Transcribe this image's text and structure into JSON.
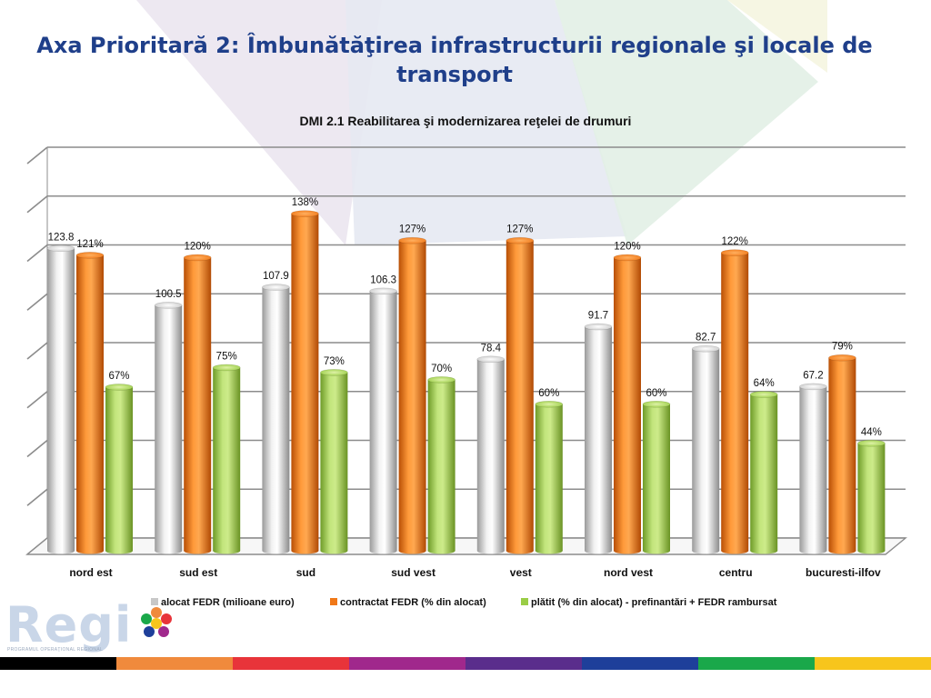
{
  "slide": {
    "title": "Axa Prioritară 2: Îmbunătăţirea infrastructurii regionale şi locale de transport",
    "logo_text": "Regi",
    "logo_subtext": "PROGRAMUL OPERAŢIONAL REGIONAL"
  },
  "bottom_strip_colors": [
    "#000000",
    "#f08a3c",
    "#e8343a",
    "#a0288c",
    "#5a2d8c",
    "#1e3f9a",
    "#1aa84a",
    "#f7c51c"
  ],
  "chart_data": {
    "type": "bar",
    "title": "DMI 2.1 Reabilitarea şi modernizarea reţelei de drumuri",
    "categories": [
      "nord est",
      "sud est",
      "sud",
      "sud vest",
      "vest",
      "nord vest",
      "centru",
      "bucuresti-ilfov"
    ],
    "series": [
      {
        "name": "alocat FEDR (milioane euro)",
        "color": "#c8c8c8",
        "values": [
          123.8,
          100.5,
          107.9,
          106.3,
          78.4,
          91.7,
          82.7,
          67.2
        ],
        "labels": [
          "123.8",
          "100.5",
          "107.9",
          "106.3",
          "78.4",
          "91.7",
          "82.7",
          "67.2"
        ]
      },
      {
        "name": "contractat FEDR (% din alocat)",
        "color": "#f07818",
        "values": [
          121,
          120,
          138,
          127,
          127,
          120,
          122,
          79
        ],
        "labels": [
          "121%",
          "120%",
          "138%",
          "127%",
          "127%",
          "120%",
          "122%",
          "79%"
        ]
      },
      {
        "name": "plătit (% din alocat) - prefinantări + FEDR rambursat",
        "color": "#9acd46",
        "values": [
          67,
          75,
          73,
          70,
          60,
          60,
          64,
          44
        ],
        "labels": [
          "67%",
          "75%",
          "73%",
          "70%",
          "60%",
          "60%",
          "64%",
          "44%"
        ]
      }
    ],
    "ylim": [
      0,
      160
    ],
    "grid": true,
    "legend_position": "bottom"
  }
}
